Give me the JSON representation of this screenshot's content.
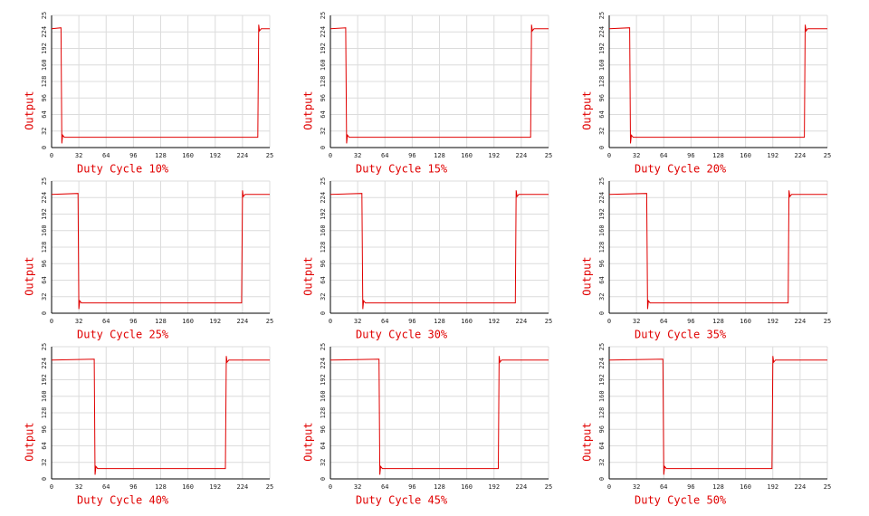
{
  "chart_data": [
    {
      "type": "line",
      "x_label": "Duty Cycle 10%",
      "y_label": "Output",
      "x": [
        0,
        11,
        12,
        13,
        15,
        242,
        243,
        244,
        246,
        256
      ],
      "values": [
        230,
        232,
        8,
        24,
        20,
        20,
        238,
        226,
        230,
        230
      ],
      "color": "#e00000",
      "xlim": [
        0,
        256
      ],
      "ylim": [
        0,
        256
      ],
      "xticks": [
        0,
        32,
        64,
        96,
        128,
        160,
        192,
        224,
        {
          "value": 256,
          "label": "25"
        }
      ],
      "yticks": [
        0,
        32,
        64,
        96,
        128,
        160,
        192,
        224,
        {
          "value": 256,
          "label": "25"
        }
      ],
      "grid": true
    },
    {
      "type": "line",
      "x_label": "Duty Cycle 15%",
      "y_label": "Output",
      "x": [
        0,
        18,
        19,
        20,
        22,
        235,
        236,
        237,
        239,
        256
      ],
      "values": [
        230,
        232,
        8,
        24,
        20,
        20,
        238,
        226,
        230,
        230
      ],
      "color": "#e00000",
      "xlim": [
        0,
        256
      ],
      "ylim": [
        0,
        256
      ],
      "xticks": [
        0,
        32,
        64,
        96,
        128,
        160,
        192,
        224,
        {
          "value": 256,
          "label": "25"
        }
      ],
      "yticks": [
        0,
        32,
        64,
        96,
        128,
        160,
        192,
        224,
        {
          "value": 256,
          "label": "25"
        }
      ],
      "grid": true
    },
    {
      "type": "line",
      "x_label": "Duty Cycle 20%",
      "y_label": "Output",
      "x": [
        0,
        24,
        25,
        26,
        28,
        229,
        230,
        231,
        233,
        256
      ],
      "values": [
        230,
        232,
        8,
        24,
        20,
        20,
        238,
        226,
        230,
        230
      ],
      "color": "#e00000",
      "xlim": [
        0,
        256
      ],
      "ylim": [
        0,
        256
      ],
      "xticks": [
        0,
        32,
        64,
        96,
        128,
        160,
        192,
        224,
        {
          "value": 256,
          "label": "25"
        }
      ],
      "yticks": [
        0,
        32,
        64,
        96,
        128,
        160,
        192,
        224,
        {
          "value": 256,
          "label": "25"
        }
      ],
      "grid": true
    },
    {
      "type": "line",
      "x_label": "Duty Cycle 25%",
      "y_label": "Output",
      "x": [
        0,
        31,
        32,
        33,
        35,
        223,
        224,
        225,
        227,
        256
      ],
      "values": [
        230,
        232,
        8,
        24,
        20,
        20,
        238,
        226,
        230,
        230
      ],
      "color": "#e00000",
      "xlim": [
        0,
        256
      ],
      "ylim": [
        0,
        256
      ],
      "xticks": [
        0,
        32,
        64,
        96,
        128,
        160,
        192,
        224,
        {
          "value": 256,
          "label": "25"
        }
      ],
      "yticks": [
        0,
        32,
        64,
        96,
        128,
        160,
        192,
        224,
        {
          "value": 256,
          "label": "25"
        }
      ],
      "grid": true
    },
    {
      "type": "line",
      "x_label": "Duty Cycle 30%",
      "y_label": "Output",
      "x": [
        0,
        37,
        38,
        39,
        41,
        217,
        218,
        219,
        221,
        256
      ],
      "values": [
        230,
        232,
        8,
        24,
        20,
        20,
        238,
        226,
        230,
        230
      ],
      "color": "#e00000",
      "xlim": [
        0,
        256
      ],
      "ylim": [
        0,
        256
      ],
      "xticks": [
        0,
        32,
        64,
        96,
        128,
        160,
        192,
        224,
        {
          "value": 256,
          "label": "25"
        }
      ],
      "yticks": [
        0,
        32,
        64,
        96,
        128,
        160,
        192,
        224,
        {
          "value": 256,
          "label": "25"
        }
      ],
      "grid": true
    },
    {
      "type": "line",
      "x_label": "Duty Cycle 35%",
      "y_label": "Output",
      "x": [
        0,
        44,
        45,
        46,
        48,
        210,
        211,
        212,
        214,
        256
      ],
      "values": [
        230,
        232,
        8,
        24,
        20,
        20,
        238,
        226,
        230,
        230
      ],
      "color": "#e00000",
      "xlim": [
        0,
        256
      ],
      "ylim": [
        0,
        256
      ],
      "xticks": [
        0,
        32,
        64,
        96,
        128,
        160,
        192,
        224,
        {
          "value": 256,
          "label": "25"
        }
      ],
      "yticks": [
        0,
        32,
        64,
        96,
        128,
        160,
        192,
        224,
        {
          "value": 256,
          "label": "25"
        }
      ],
      "grid": true
    },
    {
      "type": "line",
      "x_label": "Duty Cycle 40%",
      "y_label": "Output",
      "x": [
        0,
        50,
        51,
        52,
        54,
        204,
        205,
        206,
        208,
        256
      ],
      "values": [
        230,
        232,
        8,
        24,
        20,
        20,
        238,
        226,
        230,
        230
      ],
      "color": "#e00000",
      "xlim": [
        0,
        256
      ],
      "ylim": [
        0,
        256
      ],
      "xticks": [
        0,
        32,
        64,
        96,
        128,
        160,
        192,
        224,
        {
          "value": 256,
          "label": "25"
        }
      ],
      "yticks": [
        0,
        32,
        64,
        96,
        128,
        160,
        192,
        224,
        {
          "value": 256,
          "label": "25"
        }
      ],
      "grid": true
    },
    {
      "type": "line",
      "x_label": "Duty Cycle 45%",
      "y_label": "Output",
      "x": [
        0,
        57,
        58,
        59,
        61,
        197,
        198,
        199,
        201,
        256
      ],
      "values": [
        230,
        232,
        8,
        24,
        20,
        20,
        238,
        226,
        230,
        230
      ],
      "color": "#e00000",
      "xlim": [
        0,
        256
      ],
      "ylim": [
        0,
        256
      ],
      "xticks": [
        0,
        32,
        64,
        96,
        128,
        160,
        192,
        224,
        {
          "value": 256,
          "label": "25"
        }
      ],
      "yticks": [
        0,
        32,
        64,
        96,
        128,
        160,
        192,
        224,
        {
          "value": 256,
          "label": "25"
        }
      ],
      "grid": true
    },
    {
      "type": "line",
      "x_label": "Duty Cycle 50%",
      "y_label": "Output",
      "x": [
        0,
        63,
        64,
        65,
        67,
        191,
        192,
        193,
        195,
        256
      ],
      "values": [
        230,
        232,
        8,
        24,
        20,
        20,
        238,
        226,
        230,
        230
      ],
      "color": "#e00000",
      "xlim": [
        0,
        256
      ],
      "ylim": [
        0,
        256
      ],
      "xticks": [
        0,
        32,
        64,
        96,
        128,
        160,
        192,
        224,
        {
          "value": 256,
          "label": "25"
        }
      ],
      "yticks": [
        0,
        32,
        64,
        96,
        128,
        160,
        192,
        224,
        {
          "value": 256,
          "label": "25"
        }
      ],
      "grid": true
    }
  ]
}
